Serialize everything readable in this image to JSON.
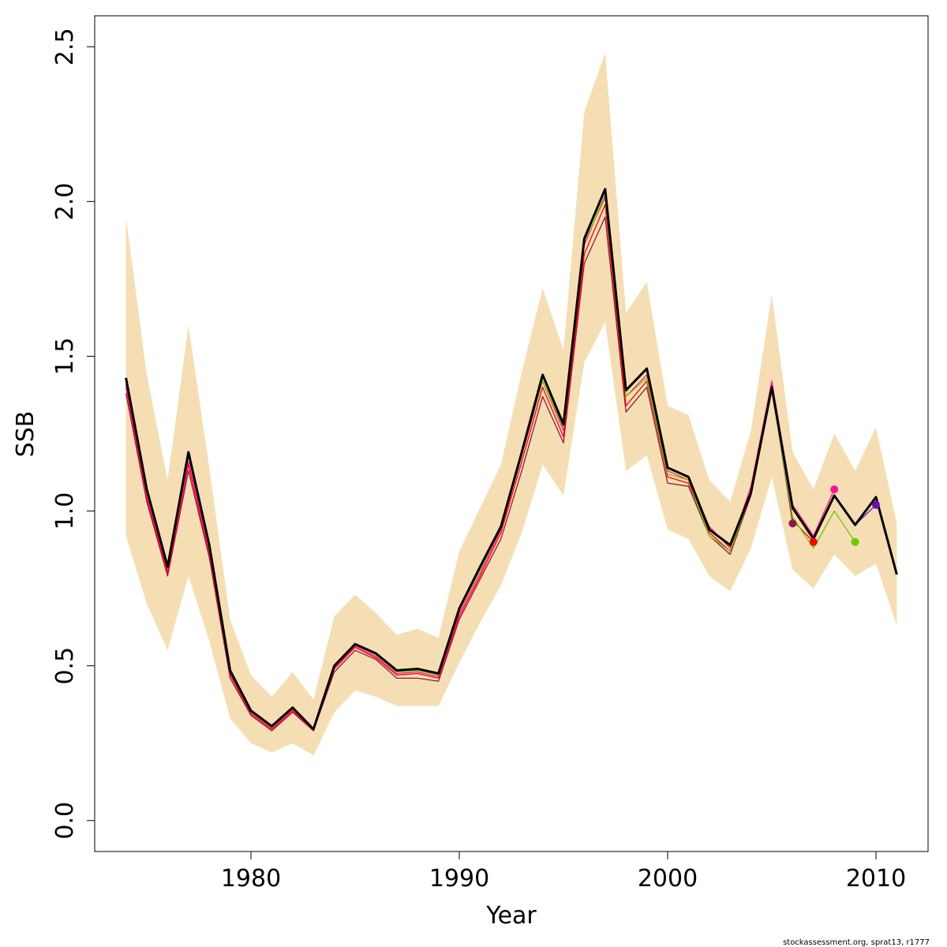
{
  "chart_data": {
    "type": "line",
    "title": "",
    "xlabel": "Year",
    "ylabel": "SSB",
    "caption": "stockassessment.org, sprat13, r1777",
    "xlim": [
      1972.5,
      2012.5
    ],
    "ylim": [
      -0.1,
      2.6
    ],
    "x_ticks": [
      1980,
      1990,
      2000,
      2010
    ],
    "x_tick_labels": [
      "1980",
      "1990",
      "2000",
      "2010"
    ],
    "y_ticks": [
      0.0,
      0.5,
      1.0,
      1.5,
      2.0,
      2.5
    ],
    "y_tick_labels": [
      "0.0",
      "0.5",
      "1.0",
      "1.5",
      "2.0",
      "2.5"
    ],
    "grid": false,
    "colors": {
      "band": "#F5DEB3",
      "main": "#000000"
    },
    "x": [
      1974,
      1975,
      1976,
      1977,
      1978,
      1979,
      1980,
      1981,
      1982,
      1983,
      1984,
      1985,
      1986,
      1987,
      1988,
      1989,
      1990,
      1991,
      1992,
      1993,
      1994,
      1995,
      1996,
      1997,
      1998,
      1999,
      2000,
      2001,
      2002,
      2003,
      2004,
      2005,
      2006,
      2007,
      2008,
      2009,
      2010,
      2011
    ],
    "band": {
      "upper": [
        1.95,
        1.44,
        1.1,
        1.6,
        1.14,
        0.65,
        0.47,
        0.4,
        0.48,
        0.39,
        0.66,
        0.73,
        0.67,
        0.6,
        0.62,
        0.59,
        0.87,
        1.01,
        1.15,
        1.45,
        1.72,
        1.52,
        2.29,
        2.48,
        1.64,
        1.74,
        1.34,
        1.31,
        1.1,
        1.03,
        1.26,
        1.7,
        1.19,
        1.07,
        1.25,
        1.13,
        1.27,
        0.96
      ],
      "lower": [
        0.92,
        0.7,
        0.55,
        0.79,
        0.58,
        0.33,
        0.25,
        0.22,
        0.25,
        0.21,
        0.35,
        0.42,
        0.4,
        0.37,
        0.37,
        0.37,
        0.51,
        0.64,
        0.76,
        0.93,
        1.15,
        1.05,
        1.48,
        1.61,
        1.13,
        1.18,
        0.94,
        0.91,
        0.79,
        0.74,
        0.88,
        1.11,
        0.81,
        0.75,
        0.86,
        0.79,
        0.83,
        0.63
      ]
    },
    "series": [
      {
        "color": "#8B1A4A",
        "x": [
          1974,
          1975,
          1976,
          1977,
          1978,
          1979,
          1980,
          1981,
          1982,
          1983,
          1984,
          1985,
          1986,
          1987,
          1988,
          1989,
          1990,
          1991,
          1992,
          1993,
          1994,
          1995,
          1996,
          1997,
          1998,
          1999,
          2000,
          2001,
          2002,
          2003,
          2004,
          2005,
          2006
        ],
        "values": [
          1.38,
          1.03,
          0.79,
          1.13,
          0.85,
          0.46,
          0.34,
          0.29,
          0.35,
          0.29,
          0.48,
          0.55,
          0.52,
          0.46,
          0.46,
          0.45,
          0.65,
          0.78,
          0.91,
          1.13,
          1.37,
          1.22,
          1.8,
          1.95,
          1.32,
          1.4,
          1.09,
          1.08,
          0.92,
          0.86,
          1.05,
          1.4,
          0.96
        ],
        "end_point": true
      },
      {
        "color": "#FF0000",
        "x": [
          1974,
          1975,
          1976,
          1977,
          1978,
          1979,
          1980,
          1981,
          1982,
          1983,
          1984,
          1985,
          1986,
          1987,
          1988,
          1989,
          1990,
          1991,
          1992,
          1993,
          1994,
          1995,
          1996,
          1997,
          1998,
          1999,
          2000,
          2001,
          2002,
          2003,
          2004,
          2005,
          2006,
          2007
        ],
        "values": [
          1.4,
          1.04,
          0.8,
          1.15,
          0.86,
          0.47,
          0.345,
          0.295,
          0.355,
          0.29,
          0.49,
          0.56,
          0.525,
          0.47,
          0.475,
          0.46,
          0.66,
          0.79,
          0.93,
          1.16,
          1.4,
          1.24,
          1.83,
          1.99,
          1.34,
          1.42,
          1.11,
          1.09,
          0.93,
          0.87,
          1.06,
          1.41,
          0.97,
          0.9
        ],
        "end_point": true
      },
      {
        "color": "#FF1493",
        "x": [
          1974,
          1975,
          1976,
          1977,
          1978,
          1979,
          1980,
          1981,
          1982,
          1983,
          1984,
          1985,
          1986,
          1987,
          1988,
          1989,
          1990,
          1991,
          1992,
          1993,
          1994,
          1995,
          1996,
          1997,
          1998,
          1999,
          2000,
          2001,
          2002,
          2003,
          2004,
          2005,
          2006,
          2007,
          2008
        ],
        "values": [
          1.41,
          1.05,
          0.81,
          1.16,
          0.87,
          0.475,
          0.35,
          0.3,
          0.36,
          0.29,
          0.495,
          0.565,
          0.53,
          0.475,
          0.48,
          0.465,
          0.67,
          0.8,
          0.94,
          1.18,
          1.42,
          1.26,
          1.86,
          2.02,
          1.37,
          1.44,
          1.13,
          1.1,
          0.95,
          0.88,
          1.08,
          1.42,
          1.02,
          0.92,
          1.07
        ],
        "end_point": true
      },
      {
        "color": "#66CC00",
        "x": [
          1974,
          1975,
          1976,
          1977,
          1978,
          1979,
          1980,
          1981,
          1982,
          1983,
          1984,
          1985,
          1986,
          1987,
          1988,
          1989,
          1990,
          1991,
          1992,
          1993,
          1994,
          1995,
          1996,
          1997,
          1998,
          1999,
          2000,
          2001,
          2002,
          2003,
          2004,
          2005,
          2006,
          2007,
          2008,
          2009
        ],
        "values": [
          1.42,
          1.06,
          0.82,
          1.18,
          0.88,
          0.48,
          0.355,
          0.305,
          0.365,
          0.295,
          0.5,
          0.57,
          0.535,
          0.48,
          0.485,
          0.47,
          0.68,
          0.81,
          0.95,
          1.19,
          1.42,
          1.27,
          1.87,
          2.01,
          1.37,
          1.43,
          1.12,
          1.1,
          0.92,
          0.87,
          1.06,
          1.39,
          0.98,
          0.88,
          1.0,
          0.9
        ],
        "end_point": true
      },
      {
        "color": "#6A0DAD",
        "x": [
          1974,
          1975,
          1976,
          1977,
          1978,
          1979,
          1980,
          1981,
          1982,
          1983,
          1984,
          1985,
          1986,
          1987,
          1988,
          1989,
          1990,
          1991,
          1992,
          1993,
          1994,
          1995,
          1996,
          1997,
          1998,
          1999,
          2000,
          2001,
          2002,
          2003,
          2004,
          2005,
          2006,
          2007,
          2008,
          2009,
          2010
        ],
        "values": [
          1.43,
          1.07,
          0.82,
          1.19,
          0.89,
          0.485,
          0.355,
          0.305,
          0.365,
          0.295,
          0.5,
          0.57,
          0.54,
          0.485,
          0.49,
          0.475,
          0.685,
          0.82,
          0.95,
          1.19,
          1.44,
          1.28,
          1.88,
          2.04,
          1.39,
          1.46,
          1.14,
          1.11,
          0.94,
          0.89,
          1.06,
          1.4,
          1.01,
          0.91,
          1.05,
          0.955,
          1.02
        ],
        "end_point": true
      },
      {
        "color": "#000000",
        "main": true,
        "x": [
          1974,
          1975,
          1976,
          1977,
          1978,
          1979,
          1980,
          1981,
          1982,
          1983,
          1984,
          1985,
          1986,
          1987,
          1988,
          1989,
          1990,
          1991,
          1992,
          1993,
          1994,
          1995,
          1996,
          1997,
          1998,
          1999,
          2000,
          2001,
          2002,
          2003,
          2004,
          2005,
          2006,
          2007,
          2008,
          2009,
          2010,
          2011
        ],
        "values": [
          1.43,
          1.07,
          0.82,
          1.19,
          0.89,
          0.485,
          0.355,
          0.305,
          0.365,
          0.295,
          0.5,
          0.57,
          0.54,
          0.485,
          0.49,
          0.475,
          0.685,
          0.82,
          0.95,
          1.19,
          1.44,
          1.28,
          1.88,
          2.04,
          1.39,
          1.46,
          1.14,
          1.11,
          0.94,
          0.89,
          1.06,
          1.4,
          1.01,
          0.91,
          1.05,
          0.955,
          1.045,
          0.795
        ],
        "end_point": false
      }
    ]
  }
}
